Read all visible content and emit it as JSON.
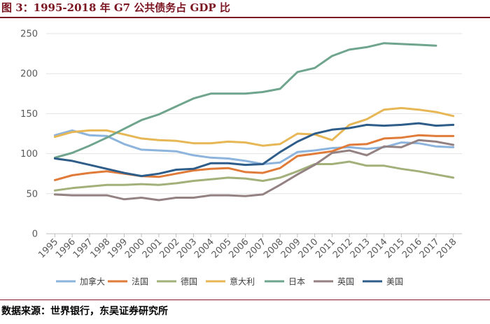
{
  "header": {
    "title": "图 3：1995-2018 年 G7 公共债务占 GDP 比"
  },
  "footer": {
    "source": "数据来源：世界银行，东吴证券研究所"
  },
  "chart_data": {
    "type": "line",
    "title": "1995-2018 年 G7 公共债务占 GDP 比",
    "xlabel": "",
    "ylabel": "",
    "ylim": [
      0,
      250
    ],
    "yticks": [
      0,
      50,
      100,
      150,
      200,
      250
    ],
    "grid": true,
    "legend_position": "bottom",
    "categories": [
      "1995",
      "1996",
      "1997",
      "1998",
      "1999",
      "2000",
      "2001",
      "2002",
      "2003",
      "2004",
      "2005",
      "2006",
      "2007",
      "2008",
      "2009",
      "2010",
      "2011",
      "2012",
      "2013",
      "2014",
      "2015",
      "2016",
      "2017",
      "2018"
    ],
    "series": [
      {
        "name": "加拿大",
        "color": "#8db4dc",
        "values": [
          123,
          129,
          123,
          122,
          112,
          105,
          104,
          103,
          98,
          95,
          94,
          91,
          87,
          89,
          102,
          104,
          107,
          108,
          106,
          108,
          114,
          113,
          109,
          108
        ]
      },
      {
        "name": "法国",
        "color": "#e07b39",
        "values": [
          67,
          73,
          76,
          78,
          75,
          72,
          71,
          75,
          79,
          81,
          82,
          77,
          76,
          82,
          97,
          100,
          103,
          111,
          112,
          119,
          120,
          123,
          122,
          122
        ]
      },
      {
        "name": "德国",
        "color": "#a2b07a",
        "values": [
          54,
          57,
          59,
          61,
          61,
          62,
          61,
          63,
          66,
          68,
          70,
          69,
          66,
          70,
          78,
          87,
          87,
          90,
          85,
          85,
          81,
          78,
          74,
          70
        ]
      },
      {
        "name": "意大利",
        "color": "#e6b754",
        "values": [
          121,
          127,
          129,
          129,
          124,
          119,
          117,
          116,
          113,
          113,
          115,
          114,
          110,
          112,
          125,
          124,
          117,
          136,
          143,
          155,
          157,
          155,
          152,
          147
        ]
      },
      {
        "name": "日本",
        "color": "#6fa48d",
        "values": [
          95,
          101,
          110,
          120,
          131,
          142,
          149,
          159,
          169,
          175,
          175,
          175,
          177,
          181,
          202,
          207,
          222,
          230,
          233,
          238,
          237,
          236,
          235,
          null
        ]
      },
      {
        "name": "英国",
        "color": "#948283",
        "values": [
          49,
          48,
          48,
          48,
          43,
          45,
          42,
          45,
          45,
          48,
          48,
          47,
          49,
          61,
          74,
          86,
          101,
          104,
          98,
          109,
          108,
          117,
          115,
          111
        ]
      },
      {
        "name": "美国",
        "color": "#2f5d8a",
        "values": [
          94,
          91,
          86,
          81,
          76,
          72,
          75,
          80,
          81,
          88,
          88,
          86,
          87,
          102,
          115,
          125,
          130,
          132,
          136,
          135,
          136,
          138,
          135,
          136
        ]
      }
    ]
  }
}
